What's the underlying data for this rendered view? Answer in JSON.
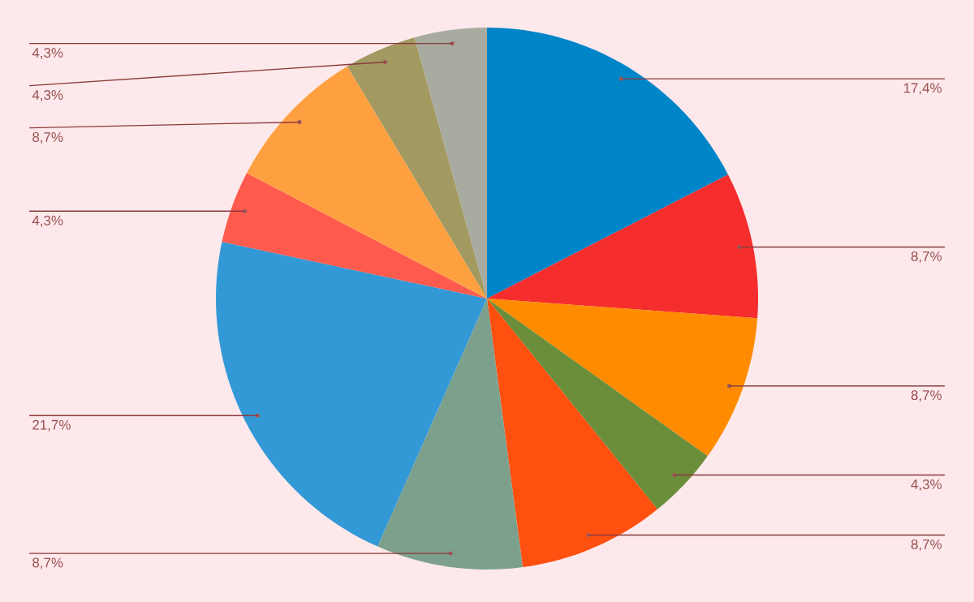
{
  "chart_data": {
    "type": "pie",
    "categories": [
      null,
      null,
      null,
      null,
      null,
      null,
      null,
      null,
      null,
      null,
      null
    ],
    "values": [
      17.4,
      8.7,
      8.7,
      4.3,
      8.7,
      8.7,
      21.7,
      4.3,
      8.7,
      4.3,
      4.3
    ],
    "value_labels": [
      "17,4%",
      "8,7%",
      "8,7%",
      "4,3%",
      "8,7%",
      "8,7%",
      "21,7%",
      "4,3%",
      "8,7%",
      "4,3%",
      "4,3%"
    ],
    "colors": [
      "#0085c8",
      "#f52d2d",
      "#ff8c00",
      "#6b8e3b",
      "#ff5010",
      "#7da08d",
      "#3399d6",
      "#ff5a4e",
      "#ffa040",
      "#a39a62",
      "#a8aba0"
    ]
  }
}
